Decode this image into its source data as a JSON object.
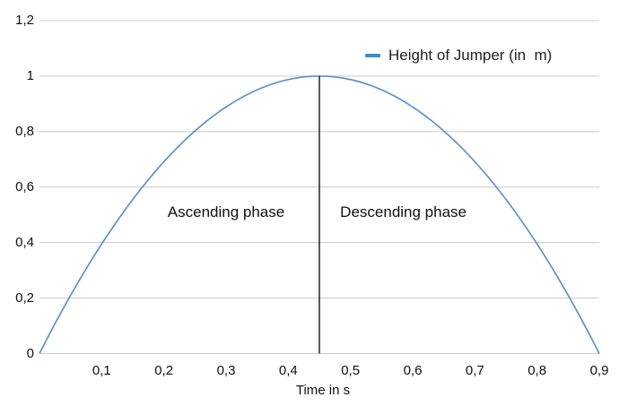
{
  "chart_data": {
    "type": "line",
    "title": "",
    "xlabel": "Time in s",
    "ylabel": "",
    "legend": {
      "label": "Height of Jumper (in  m)",
      "position": "top-right",
      "marker_color": "#4788c8"
    },
    "series": [
      {
        "name": "Height of Jumper (in  m)",
        "color": "#5e90c6",
        "x": [
          0,
          0.05,
          0.1,
          0.15,
          0.2,
          0.25,
          0.3,
          0.35,
          0.4,
          0.45,
          0.5,
          0.55,
          0.6,
          0.65,
          0.7,
          0.75,
          0.8,
          0.85,
          0.9
        ],
        "y": [
          0,
          0.21,
          0.395,
          0.556,
          0.691,
          0.802,
          0.889,
          0.951,
          0.988,
          1,
          0.988,
          0.951,
          0.889,
          0.802,
          0.691,
          0.556,
          0.395,
          0.21,
          0
        ]
      }
    ],
    "parabola": {
      "zero1": 0,
      "zero2": 0.9,
      "peak_x": 0.45,
      "peak_y": 1
    },
    "x_ticks": {
      "values": [
        0.1,
        0.2,
        0.3,
        0.4,
        0.5,
        0.6,
        0.7,
        0.8,
        0.9
      ],
      "labels": [
        "0,1",
        "0,2",
        "0,3",
        "0,4",
        "0,5",
        "0,6",
        "0,7",
        "0,8",
        "0,9"
      ]
    },
    "y_ticks": {
      "values": [
        0,
        0.2,
        0.4,
        0.6,
        0.8,
        1,
        1.2
      ],
      "labels": [
        "0",
        "0,2",
        "0,4",
        "0,6",
        "0,8",
        "1",
        "1,2"
      ]
    },
    "xlim": [
      0,
      0.9
    ],
    "ylim": [
      0,
      1.2
    ],
    "grid": "horizontal",
    "gridline_color": "#c9c9c9",
    "vertical_marker": {
      "x": 0.45,
      "from": 0,
      "to": 1,
      "color": "#000000"
    },
    "annotations": [
      {
        "text": "Ascending phase",
        "x": 0.3,
        "y": 0.51
      },
      {
        "text": "Descending phase",
        "x": 0.585,
        "y": 0.51
      }
    ]
  }
}
